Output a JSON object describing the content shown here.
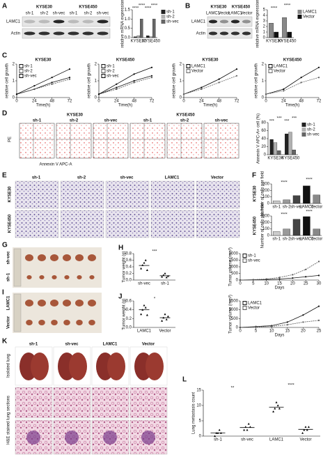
{
  "panel_labels": [
    "A",
    "B",
    "C",
    "D",
    "E",
    "F",
    "G",
    "H",
    "I",
    "J",
    "K",
    "L"
  ],
  "blot_a": {
    "lines": [
      "KYSE30",
      "KYSE450"
    ],
    "lanes": [
      "sh-1",
      "sh-2",
      "sh-vec",
      "sh-1",
      "sh-2",
      "sh-vec"
    ],
    "rows": [
      "LAMC1",
      "Actin"
    ]
  },
  "blot_b": {
    "lines": [
      "KYSE30",
      "KYSE450"
    ],
    "lanes": [
      "LAMC1",
      "Vector",
      "LAMC1",
      "Vector"
    ],
    "rows": [
      "LAMC1",
      "Actin"
    ]
  },
  "flow_d": {
    "lines": [
      "KYSE30",
      "KYSE450"
    ],
    "lanes": [
      "sh-1",
      "sh-2",
      "sh-vec",
      "sh-1",
      "sh-2",
      "sh-vec"
    ],
    "x_label": "Annexin V APC-A",
    "y_label": "PE"
  },
  "transwell_e": {
    "columns": [
      "sh-1",
      "sh-2",
      "sh-vec",
      "LAMC1",
      "Vector"
    ],
    "rows": [
      "KYSE30",
      "KYSE450"
    ]
  },
  "tumors_g": {
    "rows": [
      "sh-vec",
      "sh-1"
    ]
  },
  "tumors_i": {
    "rows": [
      "LAMC1",
      "Vector"
    ]
  },
  "lung_k": {
    "columns": [
      "sh-1",
      "sh-vec",
      "LAMC1",
      "Vector"
    ],
    "rows": [
      "Isolated lung",
      "H&E stained lung sections"
    ]
  },
  "chart_data": [
    {
      "type": "bar",
      "y_label": "relative mRNA expression",
      "categories": [
        "KYSE30",
        "KYSE450"
      ],
      "series": [
        {
          "name": "sh-1",
          "color": "#222222",
          "values": [
            0.05,
            0.1
          ]
        },
        {
          "name": "sh-2",
          "color": "#b0b0b0",
          "values": [
            0.1,
            0.05
          ]
        },
        {
          "name": "sh-vec",
          "color": "#666666",
          "values": [
            1.0,
            1.0
          ]
        }
      ],
      "ylim": [
        0,
        1.5
      ],
      "yticks": [
        {
          "value": 0,
          "label": "0.0"
        },
        {
          "value": 0.5,
          "label": "0.5"
        },
        {
          "value": 1,
          "label": "1.0"
        },
        {
          "value": 1.5,
          "label": "1.5"
        }
      ],
      "annotations": [
        "****",
        "****",
        "****",
        "****"
      ]
    },
    {
      "type": "bar",
      "y_label": "relative mRNA expression",
      "categories": [
        "KYSE30",
        "KYSE450"
      ],
      "series": [
        {
          "name": "LAMC1",
          "color": "#888888",
          "values": [
            2.6,
            3.6
          ]
        },
        {
          "name": "Vector",
          "color": "#111111",
          "values": [
            1.0,
            1.0
          ]
        }
      ],
      "ylim": [
        0,
        5
      ],
      "yticks": [
        0,
        1,
        2,
        3,
        4,
        5
      ],
      "annotations": [
        "****",
        "****"
      ]
    },
    {
      "type": "line",
      "title": "KYSE30",
      "y_label": "relative cell growth",
      "x_label": "Time(h)",
      "x": [
        0,
        24,
        48,
        72
      ],
      "xlim": [
        0,
        72
      ],
      "xticks": [
        0,
        24,
        48,
        72
      ],
      "series": [
        {
          "name": "sh-1",
          "color": "#111111",
          "values": [
            0.2,
            0.5,
            0.9,
            1.2
          ]
        },
        {
          "name": "sh-2",
          "color": "#555555",
          "values": [
            0.2,
            0.5,
            0.8,
            1.1
          ]
        },
        {
          "name": "sh-vec",
          "color": "#000000",
          "values": [
            0.2,
            0.7,
            1.2,
            1.7
          ]
        }
      ],
      "ylim": [
        0,
        2
      ],
      "yticks": [
        0,
        1,
        2
      ]
    },
    {
      "type": "line",
      "title": "KYSE450",
      "y_label": "relative cell growth",
      "x_label": "Time(h)",
      "x": [
        0,
        24,
        48,
        72
      ],
      "xlim": [
        0,
        72
      ],
      "xticks": [
        0,
        24,
        48,
        72
      ],
      "series": [
        {
          "name": "sh-1",
          "color": "#111111",
          "values": [
            0.2,
            0.6,
            1.0,
            1.3
          ]
        },
        {
          "name": "sh-2",
          "color": "#555555",
          "values": [
            0.2,
            0.5,
            0.9,
            1.2
          ]
        },
        {
          "name": "sh-vec",
          "color": "#000000",
          "values": [
            0.2,
            0.8,
            1.4,
            1.8
          ]
        }
      ],
      "ylim": [
        0,
        2
      ],
      "yticks": [
        0,
        1,
        2
      ]
    },
    {
      "type": "line",
      "title": "KYSE30",
      "y_label": "relative cell growth",
      "x_label": "Time(h)",
      "x": [
        0,
        24,
        48,
        72
      ],
      "xlim": [
        0,
        72
      ],
      "xticks": [
        0,
        24,
        48,
        72
      ],
      "series": [
        {
          "name": "LAMC1",
          "color": "#000000",
          "values": [
            0.2,
            0.6,
            1.1,
            1.7
          ]
        },
        {
          "name": "Vector",
          "color": "#666666",
          "values": [
            0.2,
            0.5,
            0.9,
            1.3
          ]
        }
      ],
      "ylim": [
        0,
        2
      ],
      "yticks": [
        0,
        1,
        2
      ]
    },
    {
      "type": "line",
      "title": "KYSE450",
      "y_label": "relative cell growth",
      "x_label": "Time(h)",
      "x": [
        0,
        24,
        48,
        72
      ],
      "xlim": [
        0,
        72
      ],
      "xticks": [
        0,
        24,
        48,
        72
      ],
      "series": [
        {
          "name": "LAMC1",
          "color": "#000000",
          "values": [
            0.2,
            0.5,
            1.2,
            1.8
          ]
        },
        {
          "name": "Vector",
          "color": "#666666",
          "values": [
            0.2,
            0.4,
            0.9,
            1.2
          ]
        }
      ],
      "ylim": [
        0,
        2
      ],
      "yticks": [
        0,
        1,
        2
      ]
    },
    {
      "type": "bar",
      "y_label": "Annexin V APC-A+ cell (%)",
      "categories": [
        "KYSE30",
        "KYSE450"
      ],
      "series": [
        {
          "name": "sh-1",
          "color": "#222222",
          "values": [
            38,
            52
          ]
        },
        {
          "name": "sh-2",
          "color": "#b0b0b0",
          "values": [
            30,
            56
          ]
        },
        {
          "name": "sh-vec",
          "color": "#666666",
          "values": [
            10,
            12
          ]
        }
      ],
      "ylim": [
        0,
        80
      ],
      "yticks": [
        0,
        20,
        40,
        60,
        80
      ],
      "annotations": [
        "***",
        "***",
        "***",
        "***"
      ]
    },
    {
      "type": "bar",
      "title": "KYSE30",
      "y_label": "Number of cells per field",
      "categories": [
        "sh-1",
        "sh-2",
        "sh-vec",
        "LAMC1",
        "Vector"
      ],
      "values": [
        40,
        55,
        120,
        270,
        130
      ],
      "colors": [
        "#cccccc",
        "#999999",
        "#444444",
        "#111111",
        "#888888"
      ],
      "ylim": [
        0,
        300
      ],
      "yticks": [
        0,
        100,
        200,
        300
      ],
      "annotations": [
        "****",
        "****"
      ]
    },
    {
      "type": "bar",
      "title": "KYSE450",
      "y_label": "Number of cells per field",
      "categories": [
        "sh-1",
        "sh-2",
        "sh-vec",
        "LAMC1",
        "Vector"
      ],
      "values": [
        60,
        100,
        250,
        290,
        100
      ],
      "colors": [
        "#cccccc",
        "#999999",
        "#444444",
        "#111111",
        "#888888"
      ],
      "ylim": [
        0,
        300
      ],
      "yticks": [
        0,
        100,
        200,
        300
      ],
      "annotations": [
        "****",
        "****"
      ]
    },
    {
      "type": "dot",
      "y_label": "Tumor weight (g)",
      "categories": [
        "sh-vec",
        "sh-1"
      ],
      "points": [
        [
          0.35,
          0.45,
          0.52,
          0.6,
          0.3
        ],
        [
          0.1,
          0.15,
          0.2,
          0.08,
          0.12
        ]
      ],
      "values": [
        0.44,
        0.13
      ],
      "ylim": [
        0,
        0.8
      ],
      "yticks": [
        {
          "value": 0,
          "label": "0.0"
        },
        {
          "value": 0.2,
          "label": "0.2"
        },
        {
          "value": 0.4,
          "label": "0.4"
        },
        {
          "value": 0.6,
          "label": "0.6"
        },
        {
          "value": 0.8,
          "label": "0.8"
        }
      ],
      "annotations": [
        "***"
      ]
    },
    {
      "type": "line",
      "y_label": "Tumor volume (mm³)",
      "x_label": "Days",
      "x": [
        0,
        5,
        10,
        15,
        20,
        25,
        30
      ],
      "xlim": [
        0,
        30
      ],
      "xticks": [
        0,
        5,
        10,
        15,
        20,
        25,
        30
      ],
      "series": [
        {
          "name": "sh-1",
          "color": "#111111",
          "values": [
            0,
            20,
            40,
            80,
            150,
            250,
            350
          ]
        },
        {
          "name": "sh-vec",
          "color": "#555555",
          "values": [
            0,
            30,
            80,
            200,
            400,
            800,
            1400
          ]
        }
      ],
      "ylim": [
        0,
        2000
      ],
      "yticks": [
        0,
        500,
        1000,
        1500,
        2000
      ]
    },
    {
      "type": "dot",
      "y_label": "Tumor weight (g)",
      "categories": [
        "LAMC1",
        "Vector"
      ],
      "points": [
        [
          0.3,
          0.4,
          0.5,
          0.45,
          0.28
        ],
        [
          0.15,
          0.22,
          0.3,
          0.18,
          0.25
        ]
      ],
      "values": [
        0.4,
        0.22
      ],
      "ylim": [
        0,
        0.6
      ],
      "yticks": [
        {
          "value": 0,
          "label": "0.0"
        },
        {
          "value": 0.2,
          "label": "0.2"
        },
        {
          "value": 0.4,
          "label": "0.4"
        },
        {
          "value": 0.6,
          "label": "0.6"
        }
      ],
      "annotations": [
        "*"
      ]
    },
    {
      "type": "line",
      "y_label": "Tumor volume (mm³)",
      "x_label": "Days",
      "x": [
        0,
        5,
        10,
        15,
        20,
        25
      ],
      "xlim": [
        0,
        25
      ],
      "xticks": [
        0,
        5,
        10,
        15,
        20,
        25
      ],
      "series": [
        {
          "name": "LAMC1",
          "color": "#111111",
          "values": [
            0,
            50,
            100,
            300,
            700,
            1200
          ]
        },
        {
          "name": "Vector",
          "color": "#555555",
          "values": [
            0,
            30,
            60,
            150,
            300,
            400
          ]
        }
      ],
      "ylim": [
        0,
        1500
      ],
      "yticks": [
        0,
        500,
        1000,
        1500
      ]
    },
    {
      "type": "dot",
      "y_label": "Lung metastasis count",
      "categories": [
        "sh-1",
        "sh-vec",
        "LAMC1",
        "Vector"
      ],
      "points": [
        [
          0,
          1,
          1,
          2,
          1
        ],
        [
          2,
          3,
          2,
          4,
          3
        ],
        [
          8,
          9,
          11,
          10,
          9
        ],
        [
          1,
          2,
          3,
          2,
          3
        ]
      ],
      "values": [
        1,
        2.8,
        9.4,
        2.2
      ],
      "ylim": [
        0,
        15
      ],
      "yticks": [
        0,
        5,
        10,
        15
      ],
      "annotations": [
        "**",
        "****"
      ]
    }
  ]
}
